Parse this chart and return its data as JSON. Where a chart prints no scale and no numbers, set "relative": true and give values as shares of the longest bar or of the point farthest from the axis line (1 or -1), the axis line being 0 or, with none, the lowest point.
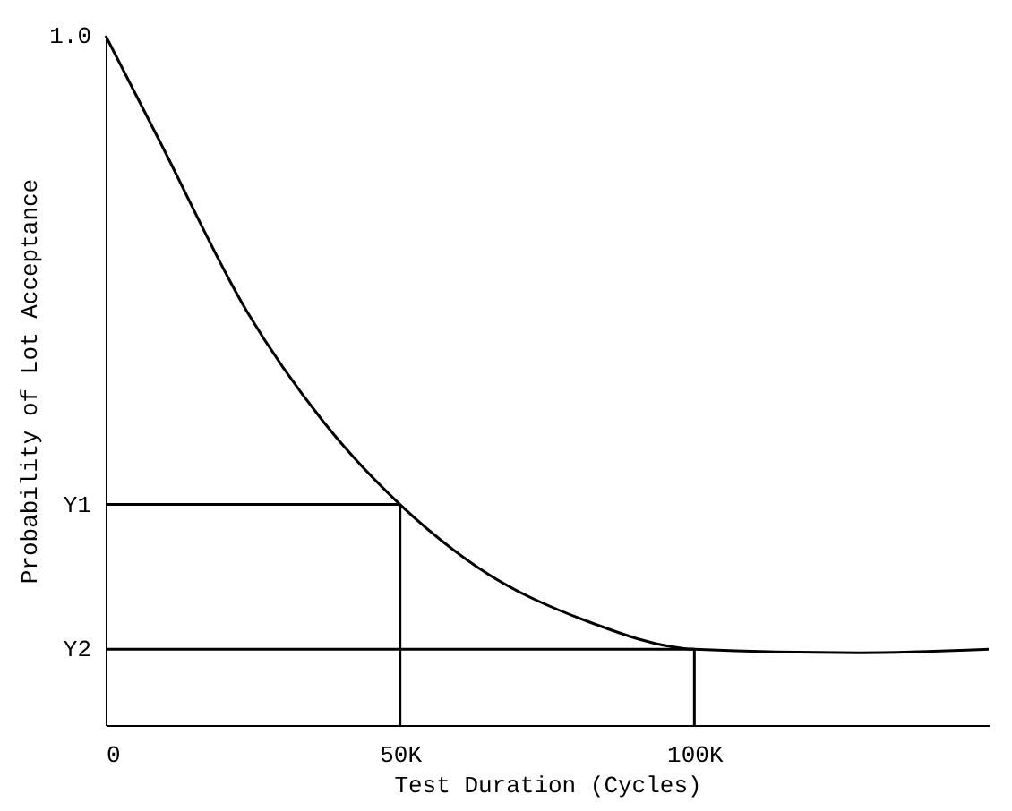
{
  "chart_data": {
    "type": "line",
    "relative": true,
    "xlabel": "Test Duration (Cycles)",
    "ylabel": "Probability of Lot Acceptance",
    "xlim": [
      0,
      150000
    ],
    "xticks": [
      0,
      {
        "value": 50000,
        "label": "50K"
      },
      {
        "value": 100000,
        "label": "100K"
      }
    ],
    "grid": false,
    "marker": "none",
    "line_style": "solid",
    "series": [
      {
        "color": "#000000",
        "x": [
          0,
          9000,
          24000,
          37000,
          50000,
          63000,
          82000,
          100000,
          128000,
          150000
        ],
        "values": [
          1.0,
          0.85,
          0.6,
          0.44,
          0.32,
          0.23,
          0.15,
          0.11,
          0.105,
          0.11
        ]
      },
      {
        "color": "#000000",
        "x": [
          50000,
          50000
        ],
        "values": [
          0.32,
          0
        ]
      },
      {
        "color": "#000000",
        "x": [
          100000,
          100000
        ],
        "values": [
          0.11,
          0
        ]
      }
    ],
    "ref_lines": [
      {
        "axis": "y",
        "value": 0.32,
        "label": "Y1"
      },
      {
        "axis": "y",
        "value": 0.11,
        "label": "Y2"
      }
    ],
    "annotations": [
      "1.0"
    ]
  }
}
